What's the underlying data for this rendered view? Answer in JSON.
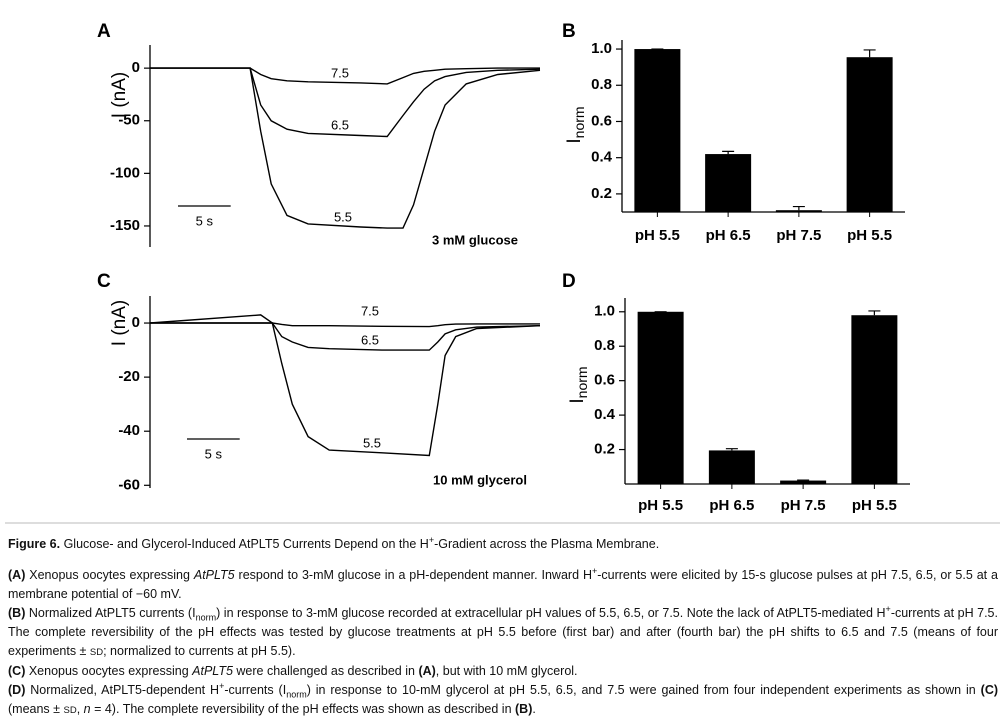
{
  "chart_data": [
    {
      "type": "line",
      "panel": "A",
      "ylabel": "I (nA)",
      "annotation": "3 mM glucose",
      "scale_bar": {
        "value": 5,
        "label": "5 s"
      },
      "x": [
        0,
        9.5,
        10.5,
        11.5,
        13,
        15,
        20,
        22.5,
        24,
        25,
        26,
        27,
        28,
        30,
        33,
        37
      ],
      "xlim": [
        0,
        37
      ],
      "ylim": [
        -170,
        22
      ],
      "yticks": [
        0,
        -50,
        -100,
        -150
      ],
      "color": "#000000",
      "series": [
        {
          "name": "7.5",
          "values": [
            0,
            0,
            -6,
            -10,
            -12,
            -13,
            -14,
            -15,
            -9,
            -5,
            -3,
            -2,
            -1,
            -0.5,
            0,
            0
          ]
        },
        {
          "name": "6.5",
          "values": [
            0,
            0,
            -35,
            -50,
            -58,
            -62,
            -64,
            -65,
            -45,
            -32,
            -20,
            -12,
            -8,
            -4,
            -2,
            -1
          ]
        },
        {
          "name": "5.5",
          "values": [
            0,
            0,
            -60,
            -110,
            -140,
            -148,
            -151,
            -152,
            -152,
            -130,
            -95,
            -60,
            -35,
            -15,
            -6,
            -2
          ]
        }
      ]
    },
    {
      "type": "bar",
      "panel": "B",
      "ylabel": "I",
      "ylabel_sub": "norm",
      "color": "#000000",
      "categories": [
        "pH 5.5",
        "pH 6.5",
        "pH 7.5",
        "pH 5.5"
      ],
      "values": [
        1.0,
        0.42,
        0.11,
        0.955
      ],
      "errors": [
        0,
        0.015,
        0.02,
        0.04
      ],
      "ylim": [
        0.1,
        1.05
      ],
      "yticks": [
        0.2,
        0.4,
        0.6,
        0.8,
        {
          "value": 1,
          "label": "1.0"
        }
      ]
    },
    {
      "type": "line",
      "panel": "C",
      "ylabel": "I (nA)",
      "annotation": "10 mM glycerol",
      "scale_bar": {
        "value": 5,
        "label": "5 s"
      },
      "x": [
        0,
        10.5,
        11.6,
        12.5,
        13.5,
        15,
        17,
        22,
        26.5,
        27.3,
        28,
        29,
        31,
        37
      ],
      "xlim": [
        0,
        37
      ],
      "ylim": [
        -61,
        10
      ],
      "yticks": [
        0,
        -20,
        -40,
        -60
      ],
      "color": "#000000",
      "series": [
        {
          "name": "7.5",
          "values": [
            0,
            3,
            0,
            -0.5,
            -1,
            -1,
            -1,
            -1.2,
            -1.3,
            -1,
            -0.6,
            -0.4,
            -0.3,
            -0.3
          ]
        },
        {
          "name": "6.5",
          "values": [
            0,
            0,
            0,
            -5,
            -7,
            -9,
            -9.5,
            -10,
            -10,
            -7,
            -4,
            -2.5,
            -1.5,
            -1
          ]
        },
        {
          "name": "5.5",
          "values": [
            0,
            0,
            0,
            -15,
            -30,
            -42,
            -47,
            -48,
            -49,
            -30,
            -12,
            -5,
            -2,
            -1
          ]
        }
      ]
    },
    {
      "type": "bar",
      "panel": "D",
      "ylabel": "I",
      "ylabel_sub": "norm",
      "color": "#000000",
      "categories": [
        "pH 5.5",
        "pH 6.5",
        "pH 7.5",
        "pH 5.5"
      ],
      "values": [
        1.0,
        0.195,
        0.02,
        0.98
      ],
      "errors": [
        0,
        0.01,
        0.003,
        0.025
      ],
      "ylim": [
        0,
        1.08
      ],
      "yticks": [
        0.2,
        0.4,
        0.6,
        0.8,
        {
          "value": 1,
          "label": "1.0"
        }
      ]
    }
  ],
  "caption": {
    "title": [
      "Figure 6.",
      " Glucose- and Glycerol-Induced AtPLT5 Currents Depend on the H",
      "+",
      "-Gradient across the Plasma Membrane."
    ],
    "a": [
      "(A)",
      " Xenopus oocytes expressing ",
      "AtPLT5",
      " respond to 3-mM glucose in a pH-dependent manner. Inward H",
      "+",
      "-currents were elicited by 15-s glucose pulses at pH 7.5, 6.5, or 5.5 at a membrane potential of −60 mV."
    ],
    "b": [
      "(B)",
      " Normalized AtPLT5 currents (I",
      "norm",
      ") in response to 3-mM glucose recorded at extracellular pH values of 5.5, 6.5, or 7.5. Note the lack of AtPLT5-mediated H",
      "+",
      "-currents at pH 7.5. The complete reversibility of the pH effects was tested by glucose treatments at pH 5.5 before (first bar) and after (fourth bar) the pH shifts to 6.5 and 7.5 (means of four experiments ± ",
      "SD",
      "; normalized to currents at pH 5.5)."
    ],
    "c": [
      "(C)",
      " Xenopus oocytes expressing ",
      "AtPLT5",
      " were challenged as described in ",
      "(A)",
      ", but with 10 mM glycerol."
    ],
    "d": [
      "(D)",
      " Normalized, AtPLT5-dependent H",
      "+",
      "-currents (I",
      "norm",
      ") in response to 10-mM glycerol at pH 5.5, 6.5, and 7.5 were gained from four independent experiments as shown in ",
      "(C)",
      " (means ± ",
      "SD",
      ", ",
      "n",
      " = 4). The complete reversibility of the pH effects was shown as described in ",
      "(B)",
      "."
    ]
  }
}
